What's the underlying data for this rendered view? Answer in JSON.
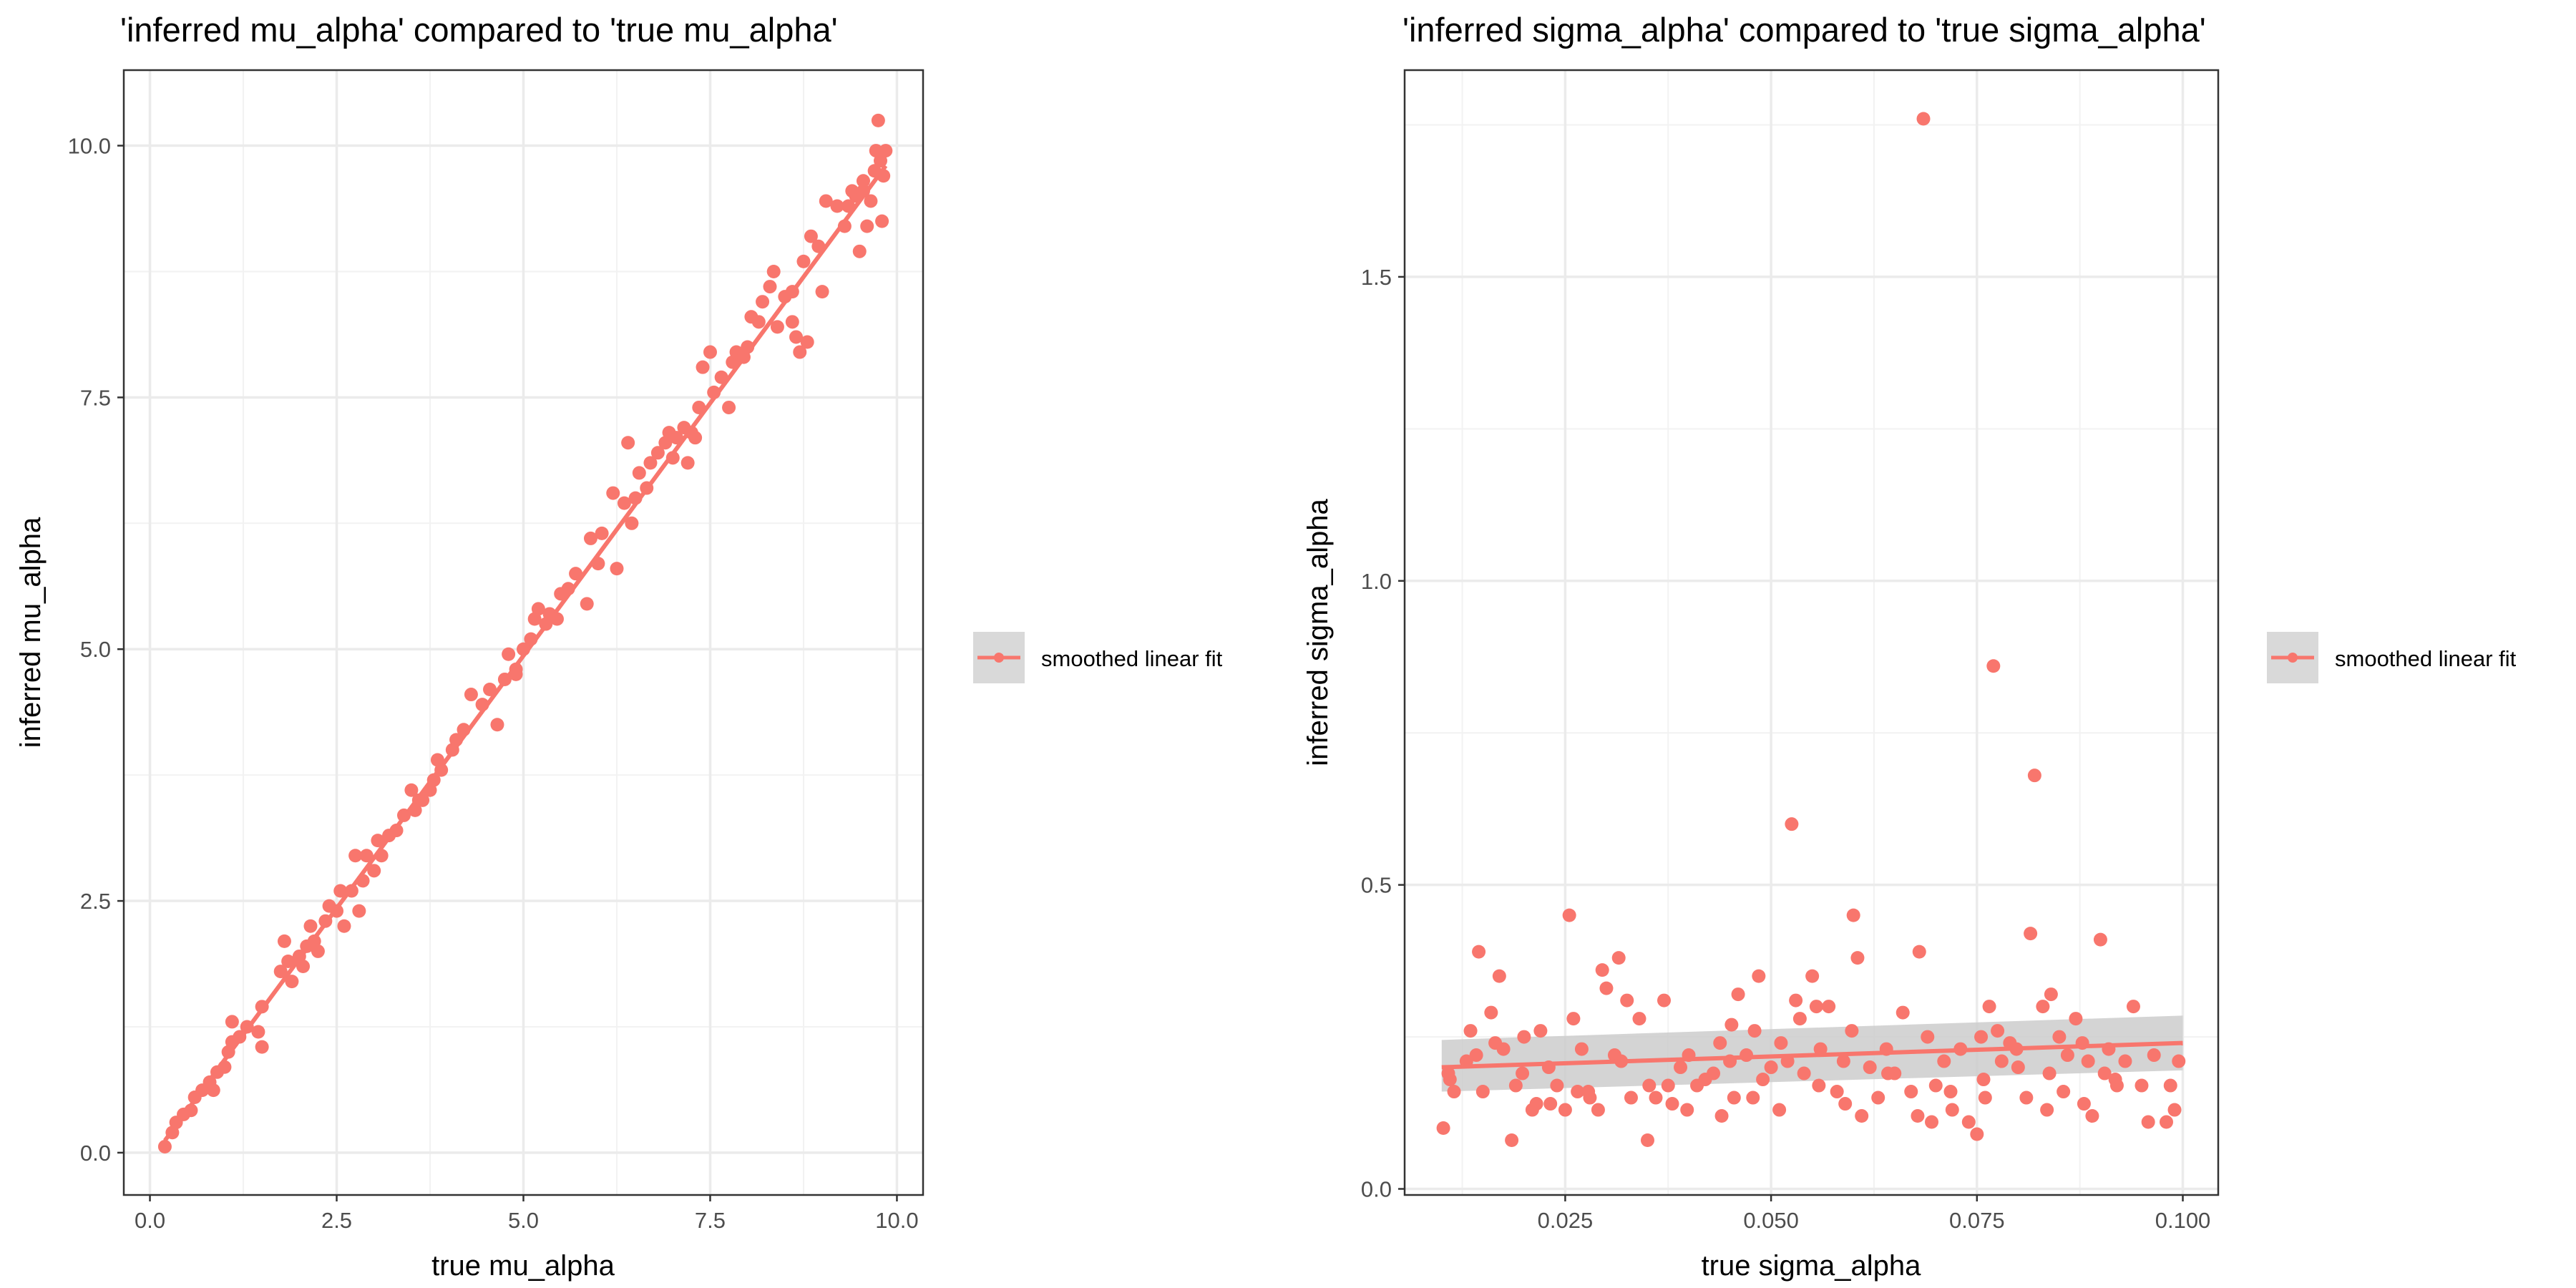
{
  "chart_data": [
    {
      "type": "scatter",
      "title": "'inferred mu_alpha' compared to 'true mu_alpha'",
      "xlabel": "true mu_alpha",
      "ylabel": "inferred mu_alpha",
      "xlim": [
        -0.35,
        10.35
      ],
      "ylim": [
        -0.42,
        10.75
      ],
      "x_ticks": [
        0.0,
        2.5,
        5.0,
        7.5,
        10.0
      ],
      "x_tick_labels": [
        "0.0",
        "2.5",
        "5.0",
        "7.5",
        "10.0"
      ],
      "y_ticks": [
        0.0,
        2.5,
        5.0,
        7.5,
        10.0
      ],
      "y_tick_labels": [
        "0.0",
        "2.5",
        "5.0",
        "7.5",
        "10.0"
      ],
      "grid": true,
      "legend": {
        "position": "right",
        "entries": [
          "smoothed linear fit"
        ]
      },
      "point_color": "#F8766D",
      "points": [
        [
          0.2,
          0.06
        ],
        [
          0.3,
          0.2
        ],
        [
          0.35,
          0.3
        ],
        [
          0.45,
          0.38
        ],
        [
          0.55,
          0.42
        ],
        [
          0.6,
          0.55
        ],
        [
          0.7,
          0.62
        ],
        [
          0.8,
          0.7
        ],
        [
          0.85,
          0.62
        ],
        [
          0.9,
          0.8
        ],
        [
          1.0,
          0.85
        ],
        [
          1.05,
          1.0
        ],
        [
          1.1,
          1.1
        ],
        [
          1.2,
          1.15
        ],
        [
          1.3,
          1.25
        ],
        [
          1.1,
          1.3
        ],
        [
          1.5,
          1.45
        ],
        [
          1.45,
          1.2
        ],
        [
          1.5,
          1.05
        ],
        [
          1.75,
          1.8
        ],
        [
          1.8,
          2.1
        ],
        [
          1.85,
          1.9
        ],
        [
          1.9,
          1.7
        ],
        [
          2.0,
          1.95
        ],
        [
          2.05,
          1.85
        ],
        [
          2.1,
          2.05
        ],
        [
          2.2,
          2.1
        ],
        [
          2.25,
          2.0
        ],
        [
          2.35,
          2.3
        ],
        [
          2.4,
          2.45
        ],
        [
          2.5,
          2.4
        ],
        [
          2.55,
          2.6
        ],
        [
          2.6,
          2.25
        ],
        [
          2.7,
          2.6
        ],
        [
          2.75,
          2.95
        ],
        [
          2.8,
          2.4
        ],
        [
          2.85,
          2.7
        ],
        [
          2.9,
          2.95
        ],
        [
          3.0,
          2.8
        ],
        [
          3.05,
          3.1
        ],
        [
          3.1,
          2.95
        ],
        [
          3.2,
          3.15
        ],
        [
          3.3,
          3.2
        ],
        [
          3.4,
          3.35
        ],
        [
          3.5,
          3.6
        ],
        [
          3.55,
          3.4
        ],
        [
          3.6,
          3.5
        ],
        [
          3.75,
          3.6
        ],
        [
          3.8,
          3.7
        ],
        [
          3.85,
          3.9
        ],
        [
          3.9,
          3.8
        ],
        [
          4.05,
          4.0
        ],
        [
          4.1,
          4.1
        ],
        [
          4.2,
          4.2
        ],
        [
          4.3,
          4.55
        ],
        [
          4.45,
          4.45
        ],
        [
          4.55,
          4.6
        ],
        [
          4.65,
          4.25
        ],
        [
          4.75,
          4.7
        ],
        [
          4.8,
          4.95
        ],
        [
          4.9,
          4.8
        ],
        [
          5.0,
          5.0
        ],
        [
          5.1,
          5.1
        ],
        [
          5.15,
          5.3
        ],
        [
          5.2,
          5.4
        ],
        [
          5.3,
          5.25
        ],
        [
          5.35,
          5.35
        ],
        [
          5.45,
          5.3
        ],
        [
          5.5,
          5.55
        ],
        [
          5.6,
          5.6
        ],
        [
          5.7,
          5.75
        ],
        [
          5.85,
          5.45
        ],
        [
          5.9,
          6.1
        ],
        [
          6.05,
          6.15
        ],
        [
          6.2,
          6.55
        ],
        [
          6.25,
          5.8
        ],
        [
          6.35,
          6.45
        ],
        [
          6.4,
          7.05
        ],
        [
          6.45,
          6.25
        ],
        [
          6.5,
          6.5
        ],
        [
          6.55,
          6.75
        ],
        [
          6.65,
          6.6
        ],
        [
          6.7,
          6.85
        ],
        [
          6.8,
          6.95
        ],
        [
          6.9,
          7.05
        ],
        [
          6.95,
          7.15
        ],
        [
          7.0,
          6.9
        ],
        [
          7.05,
          7.1
        ],
        [
          7.15,
          7.2
        ],
        [
          7.2,
          6.85
        ],
        [
          7.3,
          7.1
        ],
        [
          7.35,
          7.4
        ],
        [
          7.4,
          7.8
        ],
        [
          7.5,
          7.95
        ],
        [
          7.55,
          7.55
        ],
        [
          7.65,
          7.7
        ],
        [
          7.75,
          7.4
        ],
        [
          7.8,
          7.85
        ],
        [
          7.85,
          7.95
        ],
        [
          7.95,
          7.9
        ],
        [
          8.0,
          8.0
        ],
        [
          8.05,
          8.3
        ],
        [
          8.15,
          8.25
        ],
        [
          8.2,
          8.45
        ],
        [
          8.3,
          8.6
        ],
        [
          8.35,
          8.75
        ],
        [
          8.4,
          8.2
        ],
        [
          8.5,
          8.5
        ],
        [
          8.6,
          8.55
        ],
        [
          8.65,
          8.1
        ],
        [
          8.7,
          7.95
        ],
        [
          8.75,
          8.85
        ],
        [
          8.8,
          8.05
        ],
        [
          8.85,
          9.1
        ],
        [
          8.95,
          9.0
        ],
        [
          9.0,
          8.55
        ],
        [
          9.05,
          9.45
        ],
        [
          9.2,
          9.4
        ],
        [
          9.35,
          9.4
        ],
        [
          9.4,
          9.55
        ],
        [
          9.45,
          9.5
        ],
        [
          9.5,
          8.95
        ],
        [
          9.55,
          9.65
        ],
        [
          9.6,
          9.2
        ],
        [
          9.65,
          9.45
        ],
        [
          9.7,
          9.75
        ],
        [
          9.72,
          9.95
        ],
        [
          9.75,
          10.25
        ],
        [
          9.78,
          9.85
        ],
        [
          9.8,
          9.25
        ],
        [
          9.82,
          9.7
        ],
        [
          9.85,
          9.95
        ],
        [
          9.55,
          9.55
        ],
        [
          9.3,
          9.2
        ],
        [
          8.6,
          8.25
        ],
        [
          7.25,
          7.15
        ],
        [
          6.0,
          5.85
        ],
        [
          4.9,
          4.75
        ],
        [
          3.65,
          3.5
        ],
        [
          2.15,
          2.25
        ]
      ],
      "fit_line": {
        "x": [
          0.2,
          9.85
        ],
        "y": [
          0.12,
          9.8
        ]
      }
    },
    {
      "type": "scatter",
      "title": "'inferred sigma_alpha' compared to 'true sigma_alpha'",
      "xlabel": "true sigma_alpha",
      "ylabel": "inferred sigma_alpha",
      "xlim": [
        0.0055,
        0.1043
      ],
      "ylim": [
        -0.01,
        1.84
      ],
      "x_ticks": [
        0.025,
        0.05,
        0.075,
        0.1
      ],
      "x_tick_labels": [
        "0.025",
        "0.050",
        "0.075",
        "0.100"
      ],
      "y_ticks": [
        0.0,
        0.5,
        1.0,
        1.5
      ],
      "y_tick_labels": [
        "0.0",
        "0.5",
        "1.0",
        "1.5"
      ],
      "grid": true,
      "legend": {
        "position": "right",
        "entries": [
          "smoothed linear fit"
        ]
      },
      "point_color": "#F8766D",
      "ribbon_color": "#cccccc",
      "points": [
        [
          0.0102,
          0.1
        ],
        [
          0.011,
          0.18
        ],
        [
          0.0115,
          0.16
        ],
        [
          0.013,
          0.21
        ],
        [
          0.0135,
          0.26
        ],
        [
          0.0145,
          0.39
        ],
        [
          0.015,
          0.16
        ],
        [
          0.016,
          0.29
        ],
        [
          0.0165,
          0.24
        ],
        [
          0.017,
          0.35
        ],
        [
          0.0175,
          0.23
        ],
        [
          0.0185,
          0.08
        ],
        [
          0.019,
          0.17
        ],
        [
          0.02,
          0.25
        ],
        [
          0.021,
          0.13
        ],
        [
          0.0215,
          0.14
        ],
        [
          0.022,
          0.26
        ],
        [
          0.023,
          0.2
        ],
        [
          0.024,
          0.17
        ],
        [
          0.025,
          0.13
        ],
        [
          0.0255,
          0.45
        ],
        [
          0.026,
          0.28
        ],
        [
          0.0265,
          0.16
        ],
        [
          0.027,
          0.23
        ],
        [
          0.028,
          0.15
        ],
        [
          0.029,
          0.13
        ],
        [
          0.0295,
          0.36
        ],
        [
          0.03,
          0.33
        ],
        [
          0.031,
          0.22
        ],
        [
          0.0315,
          0.38
        ],
        [
          0.0325,
          0.31
        ],
        [
          0.033,
          0.15
        ],
        [
          0.034,
          0.28
        ],
        [
          0.035,
          0.08
        ],
        [
          0.036,
          0.15
        ],
        [
          0.037,
          0.31
        ],
        [
          0.0375,
          0.17
        ],
        [
          0.038,
          0.14
        ],
        [
          0.039,
          0.2
        ],
        [
          0.04,
          0.22
        ],
        [
          0.041,
          0.17
        ],
        [
          0.042,
          0.18
        ],
        [
          0.043,
          0.19
        ],
        [
          0.044,
          0.12
        ],
        [
          0.045,
          0.21
        ],
        [
          0.0455,
          0.15
        ],
        [
          0.046,
          0.32
        ],
        [
          0.047,
          0.22
        ],
        [
          0.048,
          0.26
        ],
        [
          0.0485,
          0.35
        ],
        [
          0.049,
          0.18
        ],
        [
          0.05,
          0.2
        ],
        [
          0.051,
          0.13
        ],
        [
          0.052,
          0.21
        ],
        [
          0.0525,
          0.6
        ],
        [
          0.053,
          0.31
        ],
        [
          0.0535,
          0.28
        ],
        [
          0.054,
          0.19
        ],
        [
          0.055,
          0.35
        ],
        [
          0.0555,
          0.3
        ],
        [
          0.056,
          0.23
        ],
        [
          0.057,
          0.3
        ],
        [
          0.058,
          0.16
        ],
        [
          0.059,
          0.14
        ],
        [
          0.06,
          0.45
        ],
        [
          0.0605,
          0.38
        ],
        [
          0.061,
          0.12
        ],
        [
          0.062,
          0.2
        ],
        [
          0.063,
          0.15
        ],
        [
          0.064,
          0.23
        ],
        [
          0.065,
          0.19
        ],
        [
          0.066,
          0.29
        ],
        [
          0.067,
          0.16
        ],
        [
          0.068,
          0.39
        ],
        [
          0.0685,
          1.76
        ],
        [
          0.069,
          0.25
        ],
        [
          0.0695,
          0.11
        ],
        [
          0.07,
          0.17
        ],
        [
          0.071,
          0.21
        ],
        [
          0.072,
          0.13
        ],
        [
          0.073,
          0.23
        ],
        [
          0.074,
          0.11
        ],
        [
          0.075,
          0.09
        ],
        [
          0.0755,
          0.25
        ],
        [
          0.076,
          0.15
        ],
        [
          0.0765,
          0.3
        ],
        [
          0.077,
          0.86
        ],
        [
          0.0775,
          0.26
        ],
        [
          0.078,
          0.21
        ],
        [
          0.079,
          0.24
        ],
        [
          0.08,
          0.2
        ],
        [
          0.081,
          0.15
        ],
        [
          0.0815,
          0.42
        ],
        [
          0.082,
          0.68
        ],
        [
          0.083,
          0.3
        ],
        [
          0.0835,
          0.13
        ],
        [
          0.084,
          0.32
        ],
        [
          0.085,
          0.25
        ],
        [
          0.0855,
          0.16
        ],
        [
          0.086,
          0.22
        ],
        [
          0.087,
          0.28
        ],
        [
          0.088,
          0.14
        ],
        [
          0.0885,
          0.21
        ],
        [
          0.089,
          0.12
        ],
        [
          0.09,
          0.41
        ],
        [
          0.0905,
          0.19
        ],
        [
          0.091,
          0.23
        ],
        [
          0.092,
          0.17
        ],
        [
          0.093,
          0.21
        ],
        [
          0.094,
          0.3
        ],
        [
          0.095,
          0.17
        ],
        [
          0.0965,
          0.22
        ],
        [
          0.098,
          0.11
        ],
        [
          0.099,
          0.13
        ],
        [
          0.0995,
          0.21
        ],
        [
          0.0108,
          0.19
        ],
        [
          0.0142,
          0.22
        ],
        [
          0.0198,
          0.19
        ],
        [
          0.0232,
          0.14
        ],
        [
          0.0278,
          0.16
        ],
        [
          0.0318,
          0.21
        ],
        [
          0.0352,
          0.17
        ],
        [
          0.0398,
          0.13
        ],
        [
          0.0438,
          0.24
        ],
        [
          0.0478,
          0.15
        ],
        [
          0.0512,
          0.24
        ],
        [
          0.0558,
          0.17
        ],
        [
          0.0598,
          0.26
        ],
        [
          0.0642,
          0.19
        ],
        [
          0.0678,
          0.12
        ],
        [
          0.0718,
          0.16
        ],
        [
          0.0758,
          0.18
        ],
        [
          0.0798,
          0.23
        ],
        [
          0.0838,
          0.19
        ],
        [
          0.0878,
          0.24
        ],
        [
          0.0918,
          0.18
        ],
        [
          0.0958,
          0.11
        ],
        [
          0.0985,
          0.17
        ],
        [
          0.0588,
          0.21
        ],
        [
          0.0452,
          0.27
        ]
      ],
      "fit_line": {
        "x": [
          0.01,
          0.1
        ],
        "y": [
          0.2,
          0.24
        ]
      },
      "confidence_band": {
        "x": [
          0.01,
          0.1
        ],
        "upper": [
          0.245,
          0.285
        ],
        "lower": [
          0.16,
          0.195
        ]
      }
    }
  ]
}
